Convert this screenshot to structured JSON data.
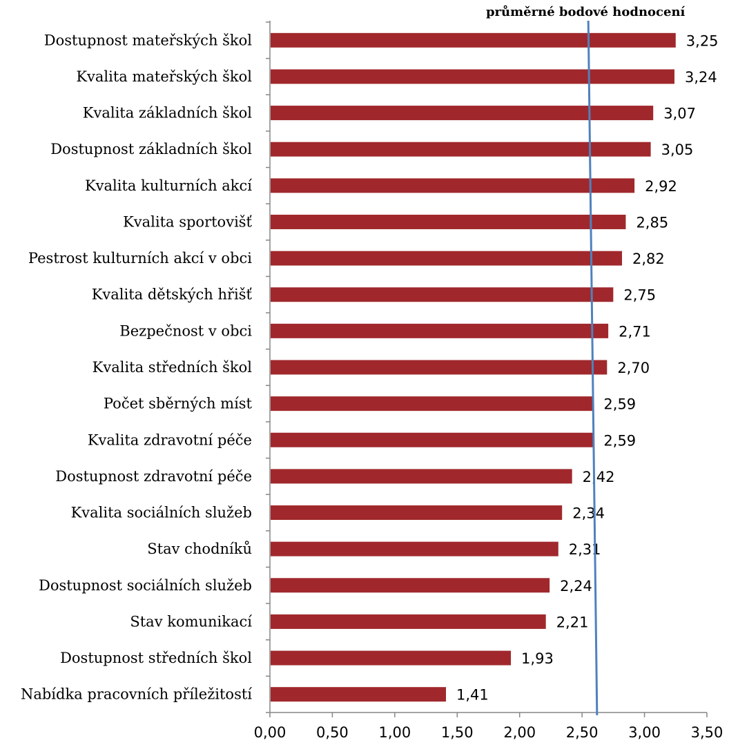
{
  "chart_data": {
    "type": "bar",
    "orientation": "horizontal",
    "categories": [
      "Dostupnost mateřských škol",
      "Kvalita mateřských škol",
      "Kvalita základních škol",
      "Dostupnost základních škol",
      "Kvalita kulturních akcí",
      "Kvalita sportovišť",
      "Pestrost kulturních akcí v obci",
      "Kvalita dětských hřišť",
      "Bezpečnost v obci",
      "Kvalita středních škol",
      "Počet sběrných míst",
      "Kvalita zdravotní péče",
      "Dostupnost zdravotní péče",
      "Kvalita sociálních služeb",
      "Stav chodníků",
      "Dostupnost sociálních služeb",
      "Stav komunikací",
      "Dostupnost středních škol",
      "Nabídka pracovních příležitostí"
    ],
    "values": [
      3.25,
      3.24,
      3.07,
      3.05,
      2.92,
      2.85,
      2.82,
      2.75,
      2.71,
      2.7,
      2.59,
      2.59,
      2.42,
      2.34,
      2.31,
      2.24,
      2.21,
      1.93,
      1.41
    ],
    "value_labels": [
      "3,25",
      "3,24",
      "3,07",
      "3,05",
      "2,92",
      "2,85",
      "2,82",
      "2,75",
      "2,71",
      "2,70",
      "2,59",
      "2,59",
      "2,42",
      "2,34",
      "2,31",
      "2,24",
      "2,21",
      "1,93",
      "1,41"
    ],
    "xlim": [
      0,
      3.5
    ],
    "x_ticks": [
      0,
      0.5,
      1,
      1.5,
      2,
      2.5,
      3,
      3.5
    ],
    "x_tick_labels": [
      "0,00",
      "0,50",
      "1,00",
      "1,50",
      "2,00",
      "2,50",
      "3,00",
      "3,50"
    ],
    "grid": false,
    "bar_color": "#A0282C",
    "reference_line": {
      "label": "průměrné bodové hodnocení",
      "value_top": 2.55,
      "value_bottom": 2.62,
      "color": "#4F81BD"
    }
  }
}
